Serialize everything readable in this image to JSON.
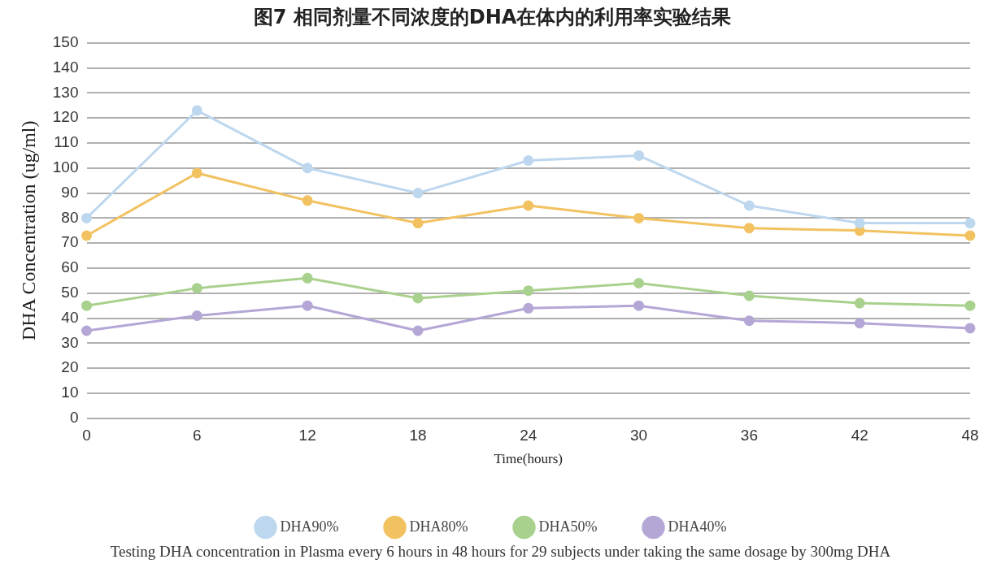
{
  "chart_data": {
    "type": "line",
    "title": "图7 相同剂量不同浓度的DHA在体内的利用率实验结果",
    "xlabel": "Time(hours)",
    "ylabel": "DHA Concentration (ug/ml)",
    "categories": [
      "0",
      "6",
      "12",
      "18",
      "24",
      "30",
      "36",
      "42",
      "48"
    ],
    "series": [
      {
        "name": "DHA90%",
        "color": "#bdd7ee",
        "values": [
          80,
          123,
          100,
          90,
          103,
          105,
          85,
          78,
          78
        ]
      },
      {
        "name": "DHA80%",
        "color": "#f2c261",
        "values": [
          73,
          98,
          87,
          78,
          85,
          80,
          76,
          75,
          73
        ]
      },
      {
        "name": "DHA50%",
        "color": "#a9d18e",
        "values": [
          45,
          52,
          56,
          48,
          51,
          54,
          49,
          46,
          45
        ]
      },
      {
        "name": "DHA40%",
        "color": "#b4a7d6",
        "values": [
          35,
          41,
          45,
          35,
          44,
          45,
          39,
          38,
          36
        ]
      }
    ],
    "ylim": [
      0,
      150
    ],
    "yticks": [
      0,
      10,
      20,
      30,
      40,
      50,
      60,
      70,
      80,
      90,
      100,
      110,
      120,
      130,
      140,
      150
    ],
    "grid": "y",
    "legend": "bottom",
    "marker": "circle",
    "line_style": "solid",
    "annotations": [
      "Testing DHA concentration in Plasma every 6 hours in 48 hours for 29 subjects under taking the same dosage by 300mg DHA"
    ]
  }
}
